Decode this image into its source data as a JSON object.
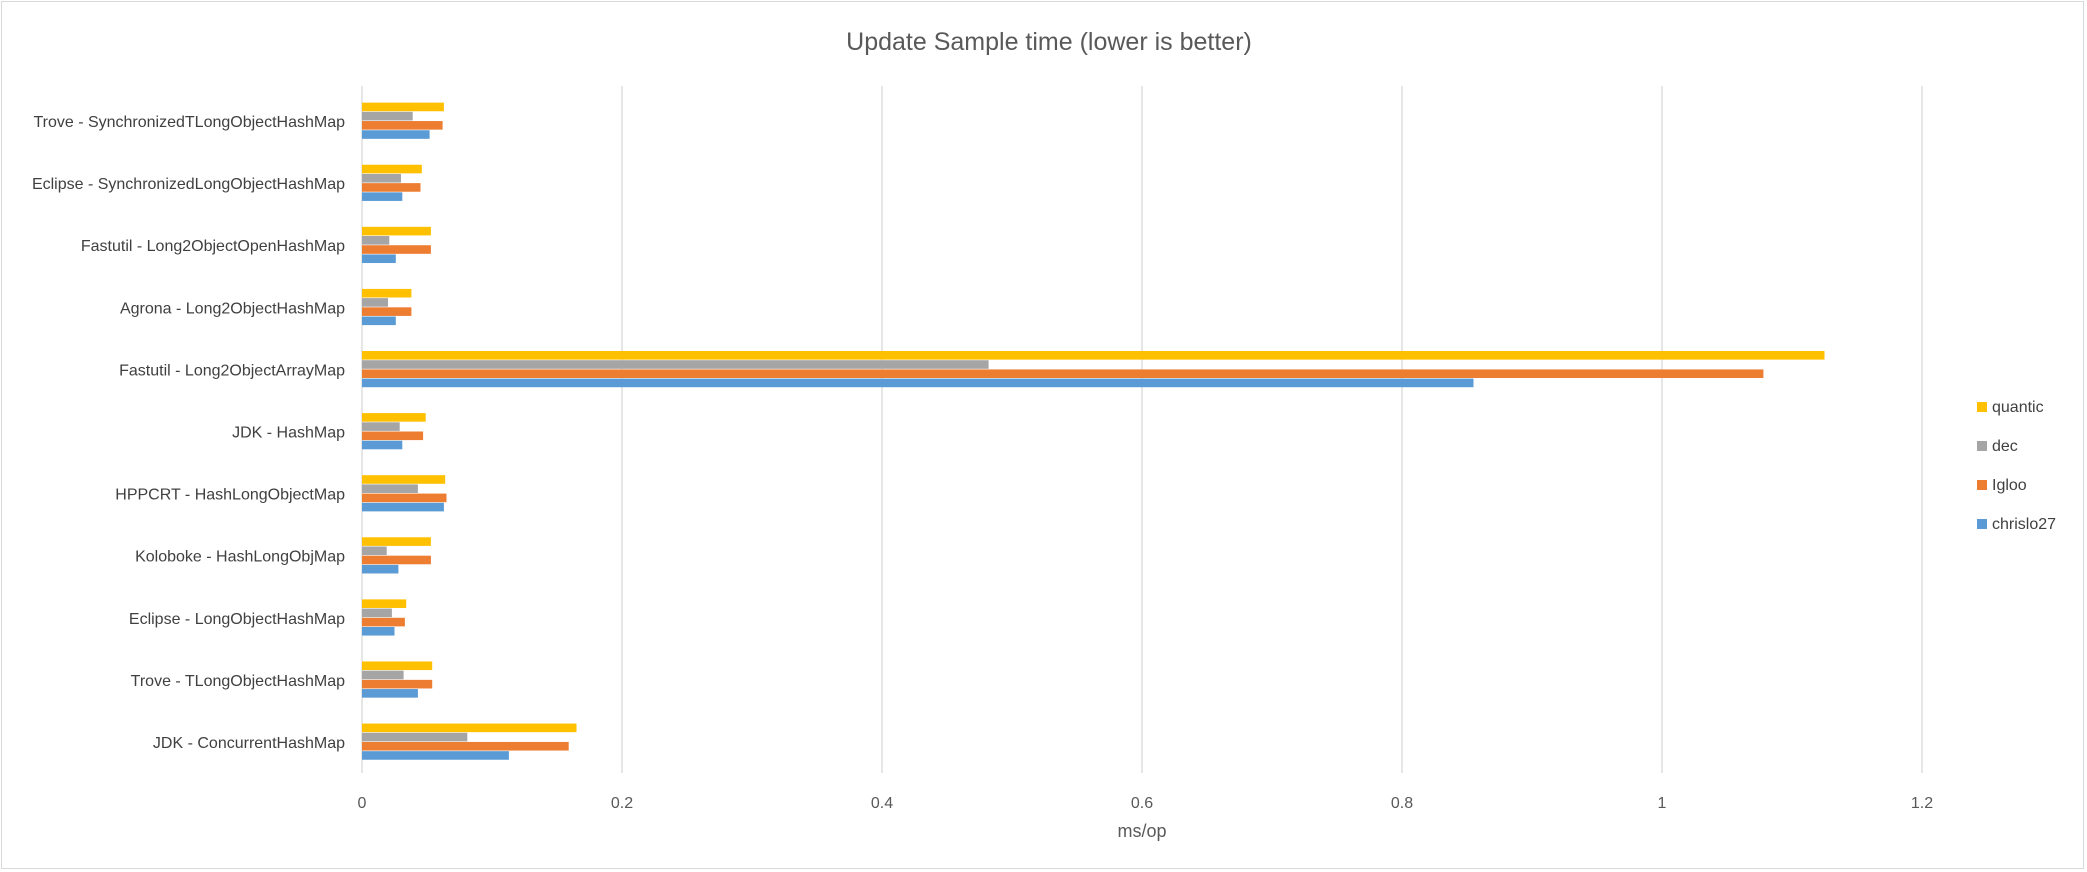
{
  "chart_data": {
    "type": "bar",
    "orientation": "horizontal",
    "title": "Update Sample time (lower is better)",
    "xlabel": "ms/op",
    "ylabel": "",
    "xlim": [
      0,
      1.2
    ],
    "xticks": [
      "0",
      "0.2",
      "0.4",
      "0.6",
      "0.8",
      "1",
      "1.2"
    ],
    "grid": "vertical",
    "legend_position": "right",
    "categories": [
      "Trove - SynchronizedTLongObjectHashMap",
      "Eclipse - SynchronizedLongObjectHashMap",
      "Fastutil - Long2ObjectOpenHashMap",
      "Agrona - Long2ObjectHashMap",
      "Fastutil - Long2ObjectArrayMap",
      "JDK - HashMap",
      "HPPCRT - HashLongObjectMap",
      "Koloboke - HashLongObjMap",
      "Eclipse - LongObjectHashMap",
      "Trove - TLongObjectHashMap",
      "JDK - ConcurrentHashMap"
    ],
    "series": [
      {
        "name": "quantic",
        "color": "#ffc000",
        "values": [
          0.063,
          0.046,
          0.053,
          0.038,
          1.125,
          0.049,
          0.064,
          0.053,
          0.034,
          0.054,
          0.165
        ]
      },
      {
        "name": "dec",
        "color": "#a5a5a5",
        "values": [
          0.039,
          0.03,
          0.021,
          0.02,
          0.482,
          0.029,
          0.043,
          0.019,
          0.023,
          0.032,
          0.081
        ]
      },
      {
        "name": "Igloo",
        "color": "#ed7d31",
        "values": [
          0.062,
          0.045,
          0.053,
          0.038,
          1.078,
          0.047,
          0.065,
          0.053,
          0.033,
          0.054,
          0.159
        ]
      },
      {
        "name": "chrislo27",
        "color": "#5b9bd5",
        "values": [
          0.052,
          0.031,
          0.026,
          0.026,
          0.855,
          0.031,
          0.063,
          0.028,
          0.025,
          0.043,
          0.113
        ]
      }
    ]
  }
}
